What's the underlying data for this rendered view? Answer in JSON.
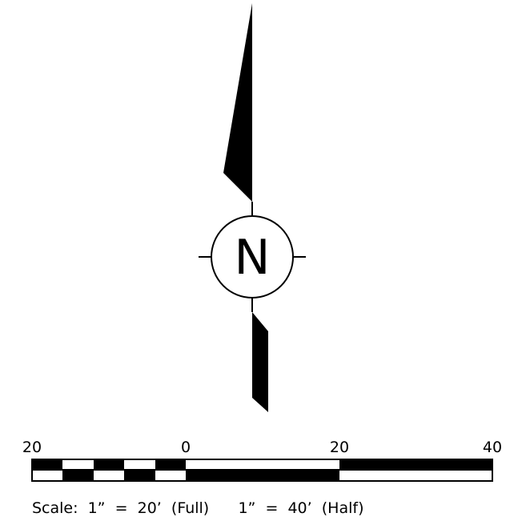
{
  "north_arrow": {
    "letter": "N"
  },
  "scale_bar": {
    "tick_labels": [
      "20",
      "0",
      "20",
      "40"
    ],
    "caption": "Scale:  1”  =  20’  (Full)      1”  =  40’  (Half)"
  },
  "colors": {
    "ink": "#000000",
    "paper": "#ffffff"
  }
}
